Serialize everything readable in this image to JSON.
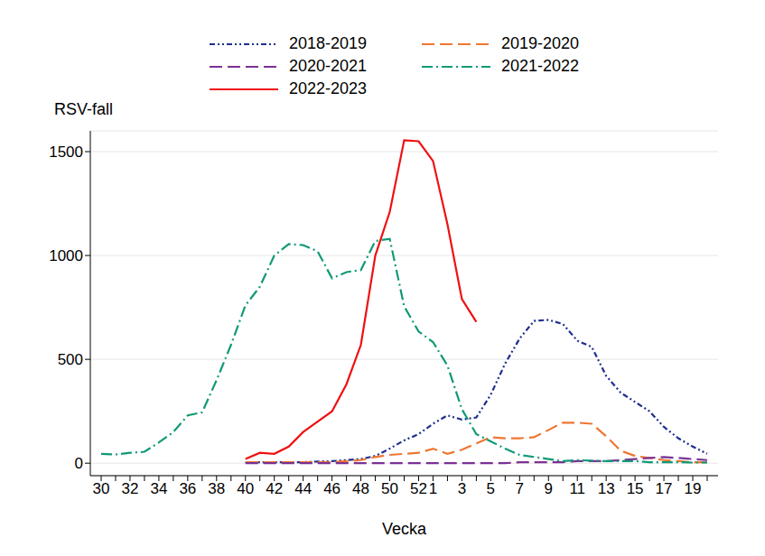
{
  "chart_data": {
    "type": "line",
    "y_label": "RSV-fall",
    "x_label": "Vecka",
    "categories": [
      "30",
      null,
      "32",
      null,
      "34",
      null,
      "36",
      null,
      "38",
      null,
      "40",
      null,
      "42",
      null,
      "44",
      null,
      "46",
      null,
      "48",
      null,
      "50",
      null,
      "52",
      "1",
      null,
      "3",
      null,
      "5",
      null,
      "7",
      null,
      "9",
      null,
      "11",
      null,
      "13",
      null,
      "15",
      null,
      "17",
      null,
      "19",
      null
    ],
    "ylim": [
      -60,
      1600
    ],
    "yticks": [
      0,
      500,
      1000,
      1500
    ],
    "grid": true,
    "series": [
      {
        "name": "2018-2019",
        "color": "#1f2f8f",
        "line_style": "dashdotdot",
        "values": [
          null,
          null,
          null,
          null,
          null,
          null,
          null,
          null,
          null,
          null,
          5,
          5,
          5,
          5,
          5,
          8,
          10,
          15,
          20,
          35,
          70,
          110,
          140,
          190,
          230,
          210,
          220,
          330,
          480,
          600,
          685,
          690,
          670,
          590,
          560,
          420,
          340,
          295,
          250,
          175,
          120,
          80,
          45
        ]
      },
      {
        "name": "2019-2020",
        "color": "#ee7733",
        "line_style": "dashed",
        "values": [
          null,
          null,
          null,
          null,
          null,
          null,
          null,
          null,
          null,
          null,
          5,
          5,
          5,
          5,
          5,
          5,
          5,
          10,
          15,
          30,
          40,
          45,
          50,
          70,
          45,
          65,
          95,
          125,
          120,
          120,
          125,
          160,
          195,
          195,
          190,
          130,
          60,
          35,
          25,
          15,
          10,
          5,
          5
        ]
      },
      {
        "name": "2020-2021",
        "color": "#7b3294",
        "line_style": "dashed",
        "values": [
          null,
          null,
          null,
          null,
          null,
          null,
          null,
          null,
          null,
          null,
          0,
          0,
          0,
          0,
          0,
          0,
          0,
          0,
          0,
          0,
          0,
          0,
          0,
          0,
          0,
          0,
          0,
          0,
          0,
          5,
          5,
          5,
          5,
          10,
          10,
          10,
          15,
          20,
          25,
          30,
          25,
          20,
          15
        ]
      },
      {
        "name": "2021-2022",
        "color": "#119977",
        "line_style": "dashdot",
        "values": [
          45,
          42,
          50,
          55,
          100,
          150,
          230,
          245,
          400,
          570,
          760,
          850,
          1000,
          1055,
          1050,
          1020,
          890,
          920,
          930,
          1070,
          1080,
          755,
          634,
          583,
          470,
          260,
          140,
          105,
          70,
          40,
          30,
          20,
          10,
          15,
          12,
          10,
          10,
          10,
          5,
          5,
          5,
          3,
          3
        ]
      },
      {
        "name": "2022-2023",
        "color": "#ee1111",
        "line_style": "solid",
        "values": [
          null,
          null,
          null,
          null,
          null,
          null,
          null,
          null,
          null,
          null,
          20,
          50,
          45,
          80,
          150,
          200,
          250,
          380,
          570,
          1000,
          1210,
          1555,
          1550,
          1455,
          1150,
          790,
          680,
          null,
          null,
          null,
          null,
          null,
          null,
          null,
          null,
          null,
          null,
          null,
          null,
          null,
          null,
          null,
          null
        ]
      }
    ]
  }
}
